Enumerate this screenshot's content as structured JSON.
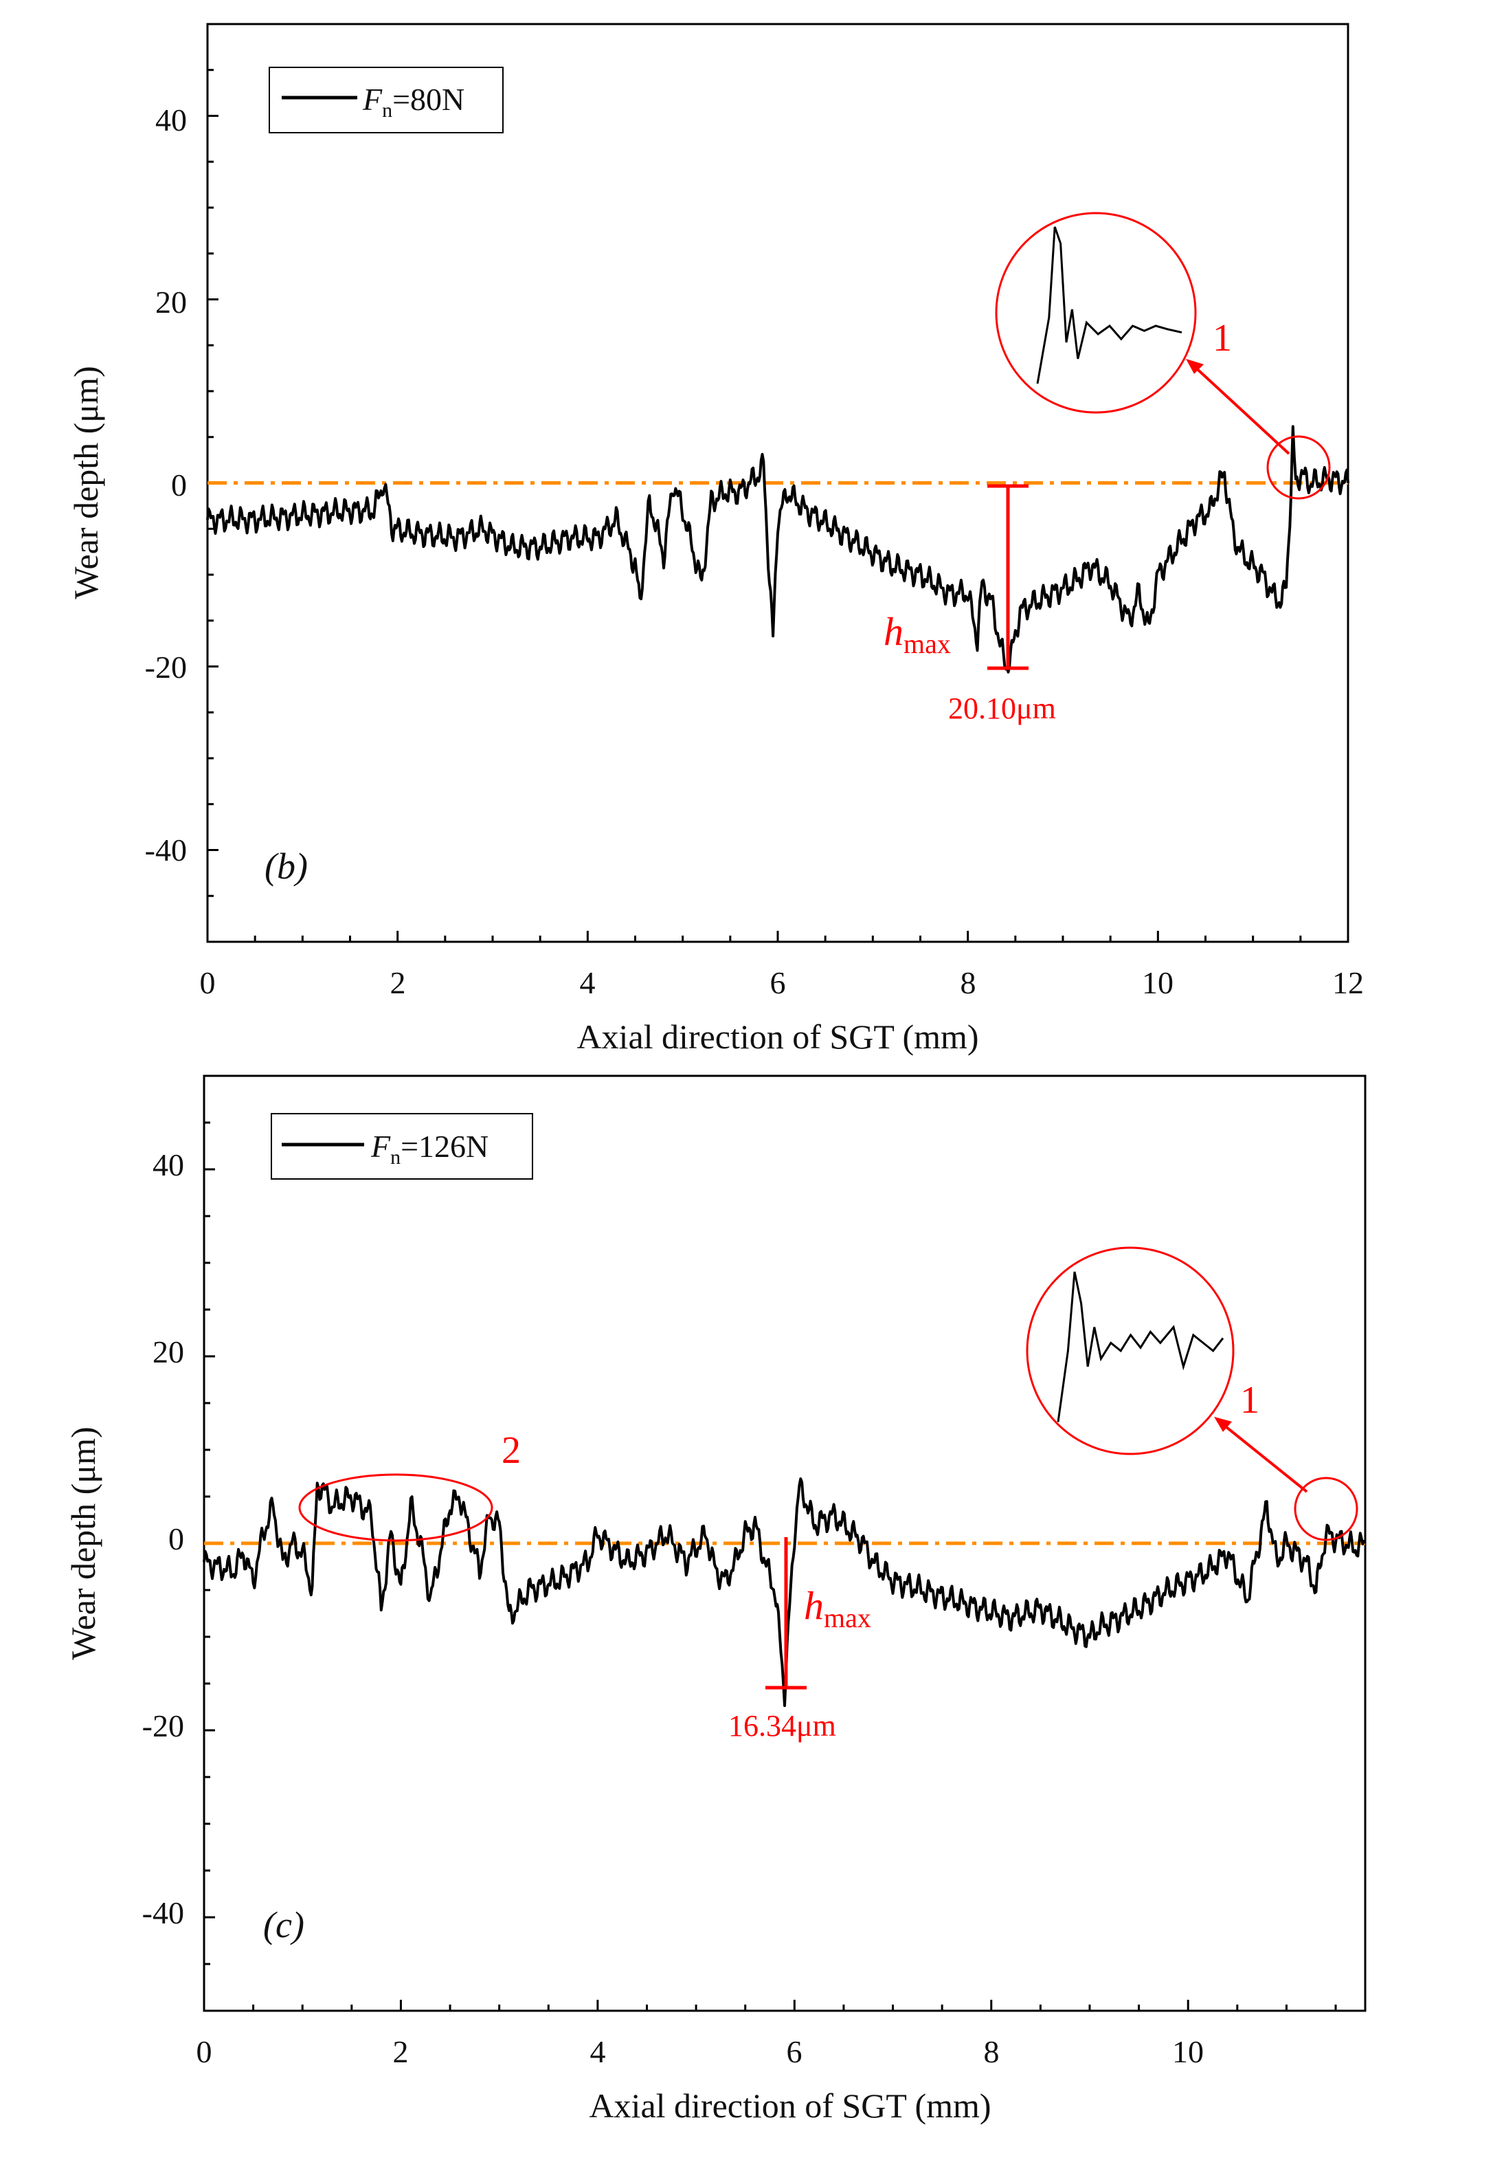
{
  "figure": {
    "panels": [
      "b",
      "c"
    ]
  },
  "chart_data": [
    {
      "id": "b",
      "type": "line",
      "panel_label": "(b)",
      "xlabel": "Axial direction of SGT (mm)",
      "ylabel": "Wear depth (μm)",
      "xlim": [
        0,
        12
      ],
      "ylim": [
        -50,
        50
      ],
      "xticks": [
        "0",
        "2",
        "4",
        "6",
        "8",
        "10",
        "12"
      ],
      "yticks": [
        "40",
        "20",
        "0",
        "-20",
        "-40"
      ],
      "legend": {
        "prefix": "F",
        "subscript": "n",
        "suffix": "=80N",
        "placement": "top-left"
      },
      "reference_line": {
        "y": 0,
        "style": "dash-dot",
        "color": "#ff8c00"
      },
      "hmax": {
        "symbol": "h",
        "subscript": "max",
        "x": 8.4,
        "y_top": 0,
        "y_bottom": -20.1,
        "value_label": "20.10μm"
      },
      "annotations": [
        {
          "label": "1",
          "circled_at_x": 11.4,
          "circled_at_y": 2
        }
      ],
      "series": [
        {
          "name": "Fn=80N",
          "color": "#000000",
          "x": [
            0,
            0.5,
            1.0,
            1.5,
            1.75,
            1.85,
            1.95,
            2.2,
            2.6,
            2.9,
            3.2,
            3.5,
            3.8,
            4.1,
            4.3,
            4.5,
            4.55,
            4.65,
            4.8,
            4.9,
            5.0,
            5.1,
            5.2,
            5.3,
            5.45,
            5.6,
            5.8,
            5.85,
            5.9,
            5.95,
            6.0,
            6.1,
            6.3,
            6.6,
            6.9,
            7.2,
            7.5,
            7.8,
            8.0,
            8.1,
            8.15,
            8.25,
            8.35,
            8.4,
            8.45,
            8.55,
            8.7,
            8.9,
            9.1,
            9.3,
            9.5,
            9.6,
            9.7,
            9.8,
            9.9,
            10.0,
            10.2,
            10.4,
            10.55,
            10.65,
            10.7,
            10.8,
            10.9,
            11.0,
            11.1,
            11.2,
            11.3,
            11.35,
            11.4,
            11.42,
            11.45,
            11.5,
            11.6,
            11.8,
            12.0
          ],
          "values": [
            -4,
            -4,
            -3.5,
            -3,
            -3,
            0,
            -5,
            -5.5,
            -6,
            -5,
            -7,
            -7,
            -6,
            -6,
            -4,
            -9,
            -13,
            -2,
            -8,
            0,
            -3,
            -7,
            -11,
            -2,
            -1,
            -1,
            1,
            2,
            -8,
            -17,
            -4,
            -1,
            -3,
            -5,
            -7,
            -9,
            -10,
            -12,
            -12,
            -17,
            -11,
            -13,
            -18,
            -20,
            -19,
            -14,
            -13,
            -12,
            -11,
            -9,
            -11,
            -13,
            -15,
            -12,
            -16,
            -10,
            -7,
            -4,
            -3,
            0,
            1,
            -6,
            -8,
            -9,
            -10,
            -12,
            -13,
            -11,
            -1,
            5,
            0,
            1,
            0,
            0.5,
            0
          ]
        }
      ],
      "zoom_series": {
        "x": [
          0,
          0.08,
          0.12,
          0.16,
          0.2,
          0.24,
          0.28,
          0.34,
          0.42,
          0.5,
          0.58,
          0.66,
          0.74,
          0.82,
          0.9,
          1.0
        ],
        "values": [
          0.05,
          0.45,
          1.0,
          0.9,
          0.3,
          0.5,
          0.2,
          0.42,
          0.35,
          0.4,
          0.32,
          0.4,
          0.37,
          0.4,
          0.38,
          0.36
        ]
      }
    },
    {
      "id": "c",
      "type": "line",
      "panel_label": "(c)",
      "xlabel": "Axial direction of SGT (mm)",
      "ylabel": "Wear depth (μm)",
      "xlim": [
        0,
        11.8
      ],
      "ylim": [
        -50,
        50
      ],
      "xticks": [
        "0",
        "2",
        "4",
        "6",
        "8",
        "10"
      ],
      "yticks": [
        "40",
        "20",
        "0",
        "-20",
        "-40"
      ],
      "legend": {
        "prefix": "F",
        "subscript": "n",
        "suffix": "=126N",
        "placement": "top-left"
      },
      "reference_line": {
        "y": 0,
        "style": "dash-dot",
        "color": "#ff8c00"
      },
      "hmax": {
        "symbol": "h",
        "subscript": "max",
        "x": 5.95,
        "y_top": 0,
        "y_bottom": -16.34,
        "value_label": "16.34μm"
      },
      "annotations": [
        {
          "label": "2",
          "region_x": [
            1.0,
            2.95
          ],
          "region_y": [
            1,
            8
          ]
        },
        {
          "label": "1",
          "circled_at_x": 11.45,
          "circled_at_y": 1.5
        }
      ],
      "series": [
        {
          "name": "Fn=126N",
          "color": "#000000",
          "x": [
            0,
            0.3,
            0.4,
            0.5,
            0.6,
            0.7,
            0.8,
            0.9,
            1.0,
            1.1,
            1.15,
            1.2,
            1.3,
            1.5,
            1.7,
            1.8,
            1.9,
            2.0,
            2.1,
            2.2,
            2.3,
            2.5,
            2.6,
            2.7,
            2.8,
            2.9,
            3.0,
            3.1,
            3.3,
            3.6,
            3.9,
            4.0,
            4.1,
            4.3,
            4.5,
            4.7,
            4.9,
            5.1,
            5.2,
            5.3,
            5.4,
            5.5,
            5.6,
            5.7,
            5.8,
            5.85,
            5.9,
            5.95,
            6.0,
            6.05,
            6.1,
            6.2,
            6.4,
            6.6,
            6.7,
            6.8,
            6.9,
            7.0,
            7.3,
            7.6,
            7.9,
            8.2,
            8.5,
            8.8,
            9.0,
            9.1,
            9.3,
            9.5,
            9.8,
            10.0,
            10.2,
            10.4,
            10.6,
            10.8,
            10.9,
            11.0,
            11.2,
            11.3,
            11.4,
            11.5,
            11.7,
            11.8
          ],
          "values": [
            -2,
            -3,
            -1,
            -4,
            1,
            4,
            -2,
            0,
            -1,
            -5,
            6,
            6,
            4,
            5,
            3,
            -7,
            1,
            -5,
            4,
            0,
            -6,
            4,
            5,
            1,
            -3,
            3,
            2,
            -8,
            -5,
            -4,
            -2,
            1,
            0,
            -2,
            -1,
            1,
            -2,
            1,
            -3,
            -4,
            -2,
            1,
            2,
            -2,
            -5,
            -10,
            -16,
            -7,
            1,
            6,
            5,
            2,
            3,
            1,
            0,
            -2,
            -3,
            -4,
            -5,
            -6,
            -7,
            -8,
            -7,
            -9,
            -10,
            -9,
            -8,
            -7,
            -5,
            -4,
            -3,
            -1,
            -6,
            4,
            -2,
            0,
            -2,
            -5,
            1,
            0.5,
            -0.5,
            0
          ]
        }
      ],
      "zoom_series": {
        "x": [
          0,
          0.06,
          0.1,
          0.14,
          0.18,
          0.22,
          0.26,
          0.32,
          0.38,
          0.44,
          0.5,
          0.56,
          0.62,
          0.7,
          0.76,
          0.82,
          0.88,
          0.94,
          1.0
        ],
        "values": [
          0.05,
          0.5,
          1.0,
          0.8,
          0.4,
          0.65,
          0.45,
          0.55,
          0.5,
          0.6,
          0.52,
          0.62,
          0.55,
          0.65,
          0.4,
          0.6,
          0.55,
          0.5,
          0.58
        ]
      }
    }
  ]
}
